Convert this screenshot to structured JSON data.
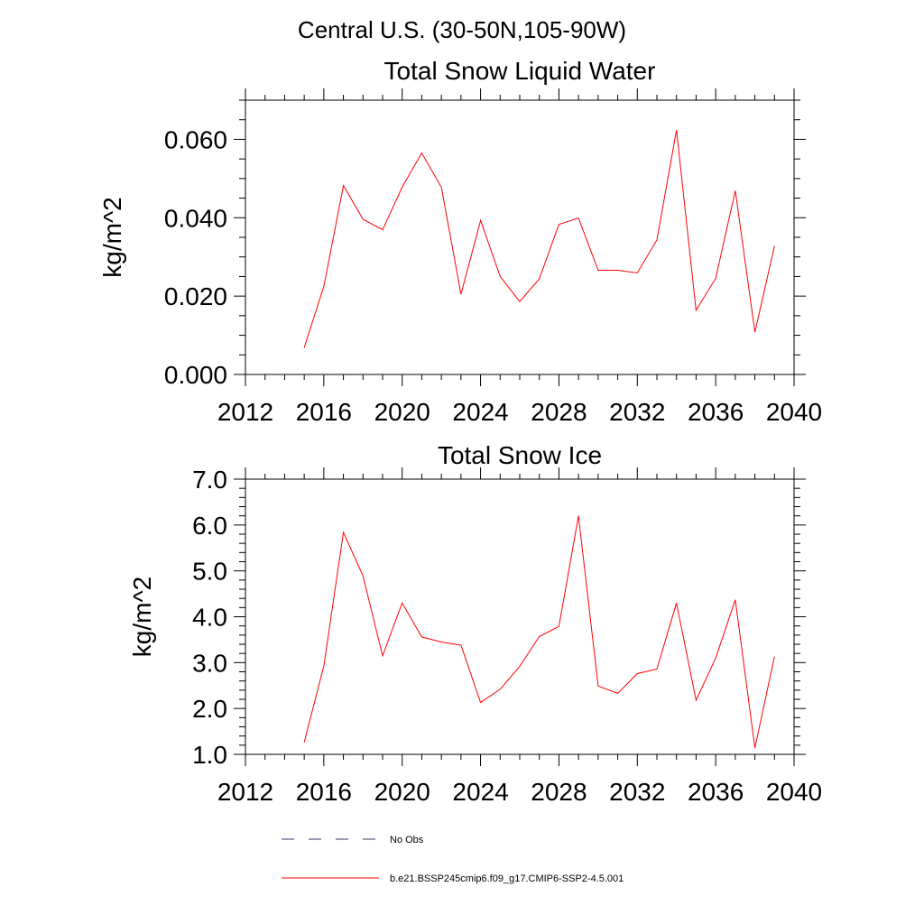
{
  "suptitle": "Central U.S. (30-50N,105-90W)",
  "legend": {
    "entries": [
      {
        "label": "No Obs",
        "color": "#333366",
        "dash": "dashed"
      },
      {
        "label": "b.e21.BSSP245cmip6.f09_g17.CMIP6-SSP2-4.5.001",
        "color": "#ff0000",
        "dash": "solid"
      }
    ],
    "placement": "bottom"
  },
  "chart_data": [
    {
      "type": "line",
      "title": "Total Snow Liquid Water",
      "xlabel": "",
      "ylabel": "kg/m^2",
      "xlim": [
        2012,
        2040
      ],
      "ylim": [
        0.0,
        0.07
      ],
      "xticks": [
        2012,
        2016,
        2020,
        2024,
        2028,
        2032,
        2036,
        2040
      ],
      "xtick_labels": [
        "2012",
        "2016",
        "2020",
        "2024",
        "2028",
        "2032",
        "2036",
        "2040"
      ],
      "yticks": [
        0.0,
        0.02,
        0.04,
        0.06
      ],
      "ytick_labels": [
        "0.000",
        "0.020",
        "0.040",
        "0.060"
      ],
      "x_minor_step": 1,
      "y_minor_step": 0.005,
      "grid": false,
      "series": [
        {
          "name": "b.e21.BSSP245cmip6.f09_g17.CMIP6-SSP2-4.5.001",
          "color": "#ff0000",
          "x": [
            2015,
            2016,
            2017,
            2018,
            2019,
            2020,
            2021,
            2022,
            2023,
            2024,
            2025,
            2026,
            2027,
            2028,
            2029,
            2030,
            2031,
            2032,
            2033,
            2034,
            2035,
            2036,
            2037,
            2038,
            2039
          ],
          "values": [
            0.0068,
            0.0225,
            0.0482,
            0.0396,
            0.0369,
            0.0478,
            0.0565,
            0.0478,
            0.0205,
            0.0393,
            0.025,
            0.0186,
            0.0244,
            0.0383,
            0.0399,
            0.0266,
            0.0266,
            0.0259,
            0.0343,
            0.0624,
            0.0164,
            0.0245,
            0.0469,
            0.0108,
            0.0328
          ]
        }
      ]
    },
    {
      "type": "line",
      "title": "Total Snow Ice",
      "xlabel": "",
      "ylabel": "kg/m^2",
      "xlim": [
        2012,
        2040
      ],
      "ylim": [
        1.0,
        7.0
      ],
      "xticks": [
        2012,
        2016,
        2020,
        2024,
        2028,
        2032,
        2036,
        2040
      ],
      "xtick_labels": [
        "2012",
        "2016",
        "2020",
        "2024",
        "2028",
        "2032",
        "2036",
        "2040"
      ],
      "yticks": [
        1.0,
        2.0,
        3.0,
        4.0,
        5.0,
        6.0,
        7.0
      ],
      "ytick_labels": [
        "1.0",
        "2.0",
        "3.0",
        "4.0",
        "5.0",
        "6.0",
        "7.0"
      ],
      "x_minor_step": 1,
      "y_minor_step": 0.2,
      "grid": false,
      "series": [
        {
          "name": "b.e21.BSSP245cmip6.f09_g17.CMIP6-SSP2-4.5.001",
          "color": "#ff0000",
          "x": [
            2015,
            2016,
            2017,
            2018,
            2019,
            2020,
            2021,
            2022,
            2023,
            2024,
            2025,
            2026,
            2027,
            2028,
            2029,
            2030,
            2031,
            2032,
            2033,
            2034,
            2035,
            2036,
            2037,
            2038,
            2039
          ],
          "values": [
            1.26,
            2.93,
            5.84,
            4.89,
            3.15,
            4.3,
            3.56,
            3.45,
            3.38,
            2.13,
            2.42,
            2.92,
            3.57,
            3.79,
            6.2,
            2.49,
            2.33,
            2.76,
            2.86,
            4.3,
            2.18,
            3.1,
            4.37,
            1.14,
            3.13
          ]
        }
      ]
    }
  ]
}
